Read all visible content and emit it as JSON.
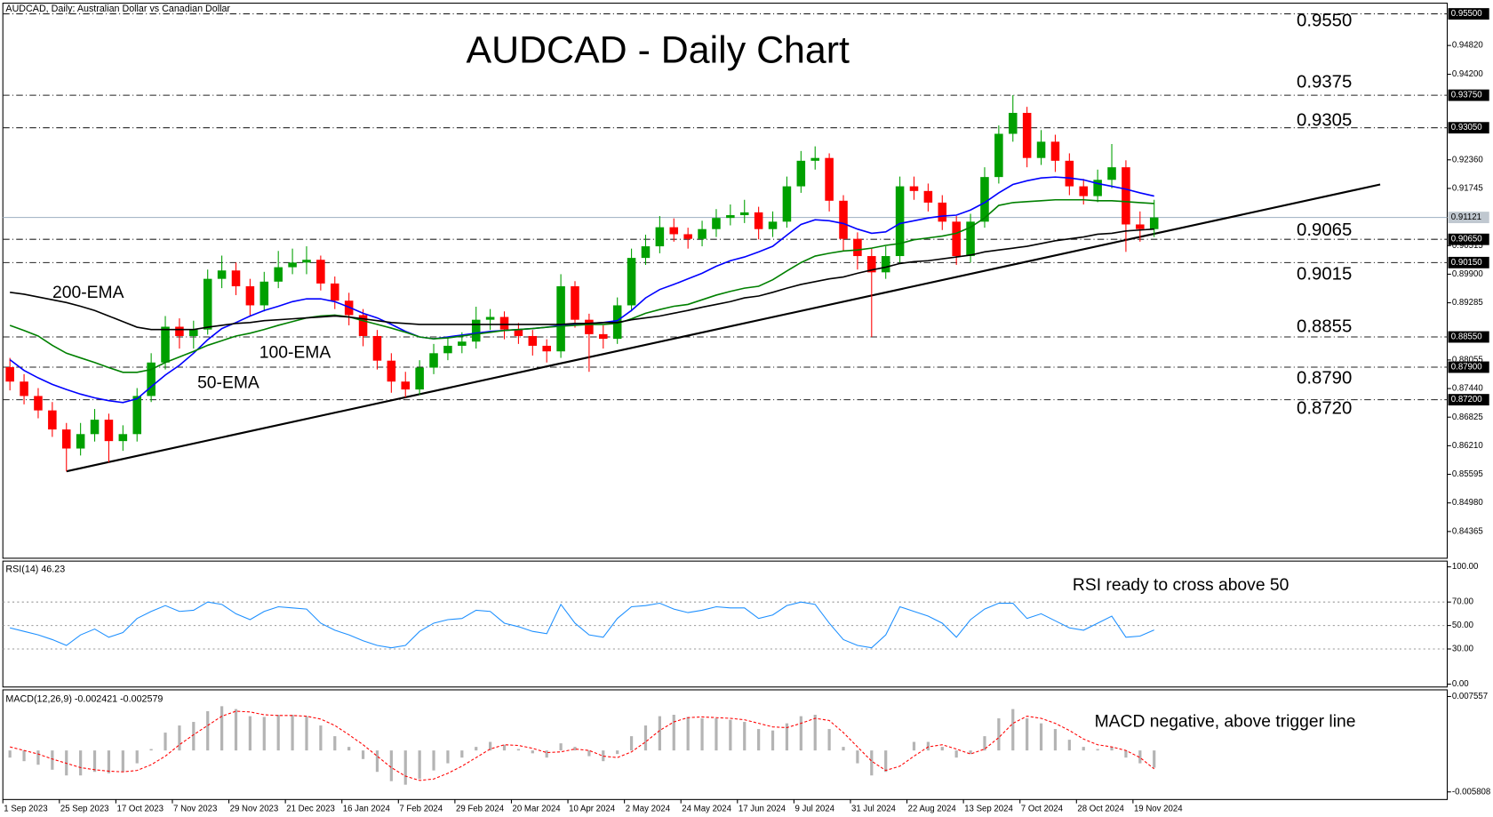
{
  "header": "AUDCAD, Daily:  Australian Dollar vs Canadian Dollar",
  "chart_data": [
    {
      "type": "candlestick",
      "title": "AUDCAD - Daily Chart",
      "categories": [
        "1 Sep 2023",
        null,
        null,
        null,
        "25 Sep 2023",
        null,
        null,
        null,
        "17 Oct 2023",
        null,
        null,
        null,
        "7 Nov 2023",
        null,
        null,
        null,
        "29 Nov 2023",
        null,
        null,
        null,
        "21 Dec 2023",
        null,
        null,
        null,
        "16 Jan 2024",
        null,
        null,
        null,
        "7 Feb 2024",
        null,
        null,
        null,
        "29 Feb 2024",
        null,
        null,
        null,
        "20 Mar 2024",
        null,
        null,
        null,
        "10 Apr 2024",
        null,
        null,
        null,
        "2 May 2024",
        null,
        null,
        null,
        "24 May 2024",
        null,
        null,
        null,
        "17 Jun 2024",
        null,
        null,
        null,
        "9 Jul 2024",
        null,
        null,
        null,
        "31 Jul 2024",
        null,
        null,
        null,
        "22 Aug 2024",
        null,
        null,
        null,
        "13 Sep 2024",
        null,
        null,
        null,
        "7 Oct 2024",
        null,
        null,
        null,
        "28 Oct 2024",
        null,
        null,
        null,
        "19 Nov 2024",
        null
      ],
      "open": [
        0.879,
        0.8759,
        0.8728,
        0.8697,
        0.8656,
        0.8615,
        0.8646,
        0.8677,
        0.8631,
        0.8646,
        0.8728,
        0.88,
        0.8877,
        0.8857,
        0.8871,
        0.898,
        0.8998,
        0.8964,
        0.8923,
        0.8974,
        0.9005,
        0.9015,
        0.9021,
        0.897,
        0.8933,
        0.8902,
        0.8857,
        0.8804,
        0.8759,
        0.8742,
        0.8789,
        0.882,
        0.8836,
        0.8845,
        0.8892,
        0.8898,
        0.8871,
        0.8857,
        0.8836,
        0.8824,
        0.8964,
        0.8892,
        0.8861,
        0.8851,
        0.8923,
        0.9025,
        0.905,
        0.9091,
        0.9076,
        0.9066,
        0.9087,
        0.9111,
        0.9117,
        0.9123,
        0.9087,
        0.9103,
        0.9179,
        0.9234,
        0.924,
        0.9148,
        0.9066,
        0.9029,
        0.8994,
        0.9029,
        0.9179,
        0.9169,
        0.9144,
        0.9103,
        0.9029,
        0.9103,
        0.9199,
        0.9292,
        0.9337,
        0.924,
        0.9275,
        0.9234,
        0.9179,
        0.9158,
        0.9193,
        0.922,
        0.9097,
        0.9087
      ],
      "high": [
        0.881,
        0.8775,
        0.8745,
        0.8715,
        0.867,
        0.867,
        0.87,
        0.869,
        0.8665,
        0.8745,
        0.882,
        0.89,
        0.8895,
        0.889,
        0.9,
        0.903,
        0.9015,
        0.898,
        0.8995,
        0.904,
        0.9045,
        0.905,
        0.903,
        0.8985,
        0.895,
        0.8915,
        0.887,
        0.882,
        0.878,
        0.8805,
        0.884,
        0.8855,
        0.8865,
        0.892,
        0.8915,
        0.891,
        0.8885,
        0.887,
        0.885,
        0.899,
        0.8975,
        0.8905,
        0.888,
        0.894,
        0.9045,
        0.9075,
        0.9115,
        0.911,
        0.909,
        0.9105,
        0.913,
        0.914,
        0.915,
        0.9135,
        0.9125,
        0.92,
        0.9255,
        0.9265,
        0.925,
        0.916,
        0.908,
        0.9045,
        0.905,
        0.92,
        0.92,
        0.9185,
        0.916,
        0.9115,
        0.912,
        0.922,
        0.931,
        0.9375,
        0.935,
        0.93,
        0.929,
        0.925,
        0.9195,
        0.9215,
        0.927,
        0.9235,
        0.9125,
        0.915
      ],
      "low": [
        0.874,
        0.871,
        0.868,
        0.864,
        0.8566,
        0.86,
        0.863,
        0.8585,
        0.861,
        0.863,
        0.8715,
        0.8785,
        0.883,
        0.883,
        0.886,
        0.896,
        0.8945,
        0.89,
        0.891,
        0.896,
        0.899,
        0.899,
        0.8955,
        0.8915,
        0.888,
        0.8835,
        0.8785,
        0.8735,
        0.8725,
        0.873,
        0.8775,
        0.8805,
        0.882,
        0.883,
        0.887,
        0.885,
        0.884,
        0.8815,
        0.88,
        0.881,
        0.8875,
        0.878,
        0.883,
        0.884,
        0.891,
        0.901,
        0.9035,
        0.906,
        0.9045,
        0.905,
        0.907,
        0.9095,
        0.91,
        0.9065,
        0.907,
        0.909,
        0.9165,
        0.9215,
        0.9125,
        0.904,
        0.9,
        0.8855,
        0.898,
        0.9015,
        0.915,
        0.9125,
        0.9085,
        0.901,
        0.9015,
        0.909,
        0.9185,
        0.9275,
        0.922,
        0.9225,
        0.921,
        0.916,
        0.914,
        0.9145,
        0.9175,
        0.9038,
        0.906,
        0.907
      ],
      "close": [
        0.8759,
        0.8728,
        0.8697,
        0.8656,
        0.8615,
        0.8646,
        0.8677,
        0.8631,
        0.8646,
        0.8728,
        0.88,
        0.8877,
        0.8857,
        0.8871,
        0.898,
        0.8998,
        0.8964,
        0.8923,
        0.8974,
        0.9005,
        0.9015,
        0.9021,
        0.897,
        0.8933,
        0.8902,
        0.8857,
        0.8804,
        0.8759,
        0.8742,
        0.8789,
        0.882,
        0.8836,
        0.8845,
        0.8892,
        0.8898,
        0.8871,
        0.8857,
        0.8836,
        0.8824,
        0.8964,
        0.8892,
        0.8861,
        0.8851,
        0.8923,
        0.9025,
        0.905,
        0.9091,
        0.9076,
        0.9066,
        0.9087,
        0.9111,
        0.9117,
        0.9123,
        0.9087,
        0.9103,
        0.9179,
        0.9234,
        0.924,
        0.9148,
        0.9066,
        0.9029,
        0.8994,
        0.9029,
        0.9179,
        0.9169,
        0.9144,
        0.9103,
        0.9029,
        0.9103,
        0.9199,
        0.9292,
        0.9337,
        0.924,
        0.9275,
        0.9234,
        0.9179,
        0.9158,
        0.9193,
        0.922,
        0.9097,
        0.9087,
        0.9112
      ],
      "up_color": "#00a000",
      "down_color": "#ff0000",
      "series": [
        {
          "name": "50-EMA",
          "color": "#0000ff",
          "values": [
            0.8806,
            0.8783,
            0.8767,
            0.8753,
            0.8742,
            0.8732,
            0.8724,
            0.8718,
            0.8714,
            0.8722,
            0.8748,
            0.8773,
            0.8794,
            0.882,
            0.8849,
            0.8873,
            0.8886,
            0.89,
            0.8912,
            0.8921,
            0.8931,
            0.8937,
            0.8937,
            0.8931,
            0.8919,
            0.8906,
            0.8896,
            0.8882,
            0.8867,
            0.8855,
            0.8851,
            0.8855,
            0.8859,
            0.8863,
            0.8867,
            0.8869,
            0.8871,
            0.8873,
            0.8876,
            0.888,
            0.8882,
            0.8884,
            0.8886,
            0.889,
            0.8912,
            0.8939,
            0.8957,
            0.8968,
            0.898,
            0.8992,
            0.9007,
            0.9019,
            0.9027,
            0.9038,
            0.905,
            0.9074,
            0.9097,
            0.9107,
            0.9105,
            0.9099,
            0.9087,
            0.9078,
            0.9081,
            0.9099,
            0.9105,
            0.9111,
            0.9115,
            0.9117,
            0.9128,
            0.9144,
            0.9165,
            0.9183,
            0.9191,
            0.9197,
            0.9199,
            0.9197,
            0.9193,
            0.9185,
            0.9179,
            0.9173,
            0.9165,
            0.9158
          ]
        },
        {
          "name": "100-EMA",
          "color": "#008000",
          "values": [
            0.888,
            0.8869,
            0.8857,
            0.8837,
            0.882,
            0.881,
            0.88,
            0.8789,
            0.8779,
            0.8779,
            0.8785,
            0.88,
            0.8812,
            0.8824,
            0.8837,
            0.8847,
            0.8857,
            0.8863,
            0.8871,
            0.888,
            0.8888,
            0.8896,
            0.89,
            0.8902,
            0.8898,
            0.889,
            0.8882,
            0.8874,
            0.8865,
            0.8855,
            0.8851,
            0.8853,
            0.8857,
            0.8861,
            0.8865,
            0.8869,
            0.8871,
            0.8873,
            0.8876,
            0.8878,
            0.888,
            0.8882,
            0.8882,
            0.8884,
            0.8894,
            0.8906,
            0.8914,
            0.8921,
            0.8925,
            0.8935,
            0.8945,
            0.8953,
            0.896,
            0.8964,
            0.8978,
            0.8997,
            0.9015,
            0.9029,
            0.9035,
            0.904,
            0.9042,
            0.9046,
            0.9052,
            0.9056,
            0.9064,
            0.9068,
            0.9072,
            0.9078,
            0.9091,
            0.9111,
            0.9138,
            0.9144,
            0.9146,
            0.9148,
            0.915,
            0.915,
            0.915,
            0.9148,
            0.9148,
            0.9146,
            0.9144,
            0.9142
          ]
        },
        {
          "name": "200-EMA",
          "color": "#000000",
          "values": [
            0.8951,
            0.8947,
            0.8941,
            0.8935,
            0.8929,
            0.8921,
            0.8912,
            0.89,
            0.8888,
            0.8876,
            0.8871,
            0.8871,
            0.8871,
            0.8871,
            0.8876,
            0.888,
            0.8884,
            0.8886,
            0.889,
            0.8892,
            0.8894,
            0.8896,
            0.8898,
            0.89,
            0.8898,
            0.8894,
            0.889,
            0.8886,
            0.8884,
            0.8882,
            0.8882,
            0.8882,
            0.8882,
            0.8882,
            0.8882,
            0.8882,
            0.8882,
            0.8882,
            0.8882,
            0.8882,
            0.8884,
            0.8884,
            0.8886,
            0.8886,
            0.8892,
            0.8896,
            0.89,
            0.8906,
            0.8912,
            0.8919,
            0.8925,
            0.8931,
            0.8939,
            0.8943,
            0.8951,
            0.896,
            0.8968,
            0.8974,
            0.898,
            0.8984,
            0.8992,
            0.8999,
            0.9005,
            0.9013,
            0.9017,
            0.9019,
            0.9023,
            0.9027,
            0.9031,
            0.9038,
            0.9042,
            0.9046,
            0.905,
            0.9056,
            0.9062,
            0.9066,
            0.907,
            0.9076,
            0.9078,
            0.9083,
            0.9085,
            0.9087
          ]
        }
      ],
      "ylim": [
        0.8379,
        0.9573
      ],
      "yticks": [
        {
          "value": 0.9482,
          "label": "0.94820"
        },
        {
          "value": 0.942,
          "label": "0.94200"
        },
        {
          "value": 0.9236,
          "label": "0.92360"
        },
        {
          "value": 0.91745,
          "label": "0.91745"
        },
        {
          "value": 0.90515,
          "label": "0.90515"
        },
        {
          "value": 0.899,
          "label": "0.89900"
        },
        {
          "value": 0.89285,
          "label": "0.89285"
        },
        {
          "value": 0.88055,
          "label": "0.88055"
        },
        {
          "value": 0.8744,
          "label": "0.87440"
        },
        {
          "value": 0.86825,
          "label": "0.86825"
        },
        {
          "value": 0.8621,
          "label": "0.86210"
        },
        {
          "value": 0.85595,
          "label": "0.85595"
        },
        {
          "value": 0.8498,
          "label": "0.84980"
        },
        {
          "value": 0.84365,
          "label": "0.84365"
        }
      ],
      "levels": [
        {
          "value": 0.955,
          "label": "0.9550",
          "axis_label": "0.95500"
        },
        {
          "value": 0.9375,
          "label": "0.9375",
          "axis_label": "0.93750"
        },
        {
          "value": 0.9305,
          "label": "0.9305",
          "axis_label": "0.93050"
        },
        {
          "value": 0.9065,
          "label": "0.9065",
          "axis_label": "0.90650"
        },
        {
          "value": 0.9015,
          "label": "0.9015",
          "axis_label": "0.90150"
        },
        {
          "value": 0.8855,
          "label": "0.8855",
          "axis_label": "0.88550"
        },
        {
          "value": 0.879,
          "label": "0.8790",
          "axis_label": "0.87900"
        },
        {
          "value": 0.872,
          "label": "0.8720",
          "axis_label": "0.87200"
        }
      ],
      "current_price": 0.91121,
      "trendline": {
        "x": [
          4,
          97
        ],
        "y": [
          0.8566,
          0.9183
        ]
      }
    },
    {
      "type": "line",
      "title": "RSI(14) 46.23",
      "annotation": "RSI ready to cross above 50",
      "color": "#1e90ff",
      "values": [
        48,
        45,
        42,
        38,
        33,
        42,
        47,
        40,
        44,
        56,
        62,
        67,
        62,
        63,
        70,
        68,
        60,
        55,
        62,
        66,
        65,
        64,
        52,
        46,
        42,
        37,
        33,
        31,
        33,
        45,
        52,
        55,
        56,
        63,
        62,
        52,
        49,
        45,
        43,
        68,
        52,
        42,
        40,
        56,
        66,
        67,
        69,
        64,
        61,
        63,
        66,
        65,
        65,
        56,
        59,
        67,
        70,
        68,
        52,
        38,
        33,
        31,
        42,
        66,
        62,
        58,
        52,
        40,
        55,
        64,
        69,
        69,
        56,
        60,
        54,
        48,
        46,
        52,
        58,
        40,
        41,
        46.23
      ],
      "ylim": [
        -2.4,
        104.9
      ],
      "yticks": [
        {
          "value": 0,
          "label": "0.00"
        },
        {
          "value": 30,
          "label": "30.00"
        },
        {
          "value": 50,
          "label": "50.00"
        },
        {
          "value": 70,
          "label": "70.00"
        },
        {
          "value": 100,
          "label": "100.00"
        }
      ]
    },
    {
      "type": "bar",
      "title": "MACD(12,26,9) -0.002421 -0.002579",
      "annotation": "MACD negative, above trigger line",
      "color": "#b4b4b4",
      "signal_color": "#ff0000",
      "values": [
        -0.001,
        -0.0015,
        -0.002,
        -0.0027,
        -0.0035,
        -0.0035,
        -0.003,
        -0.0032,
        -0.003,
        -0.0018,
        0.0002,
        0.0025,
        0.0035,
        0.004,
        0.0055,
        0.0062,
        0.0058,
        0.0048,
        0.0047,
        0.005,
        0.005,
        0.0048,
        0.0035,
        0.002,
        0.0005,
        -0.0012,
        -0.003,
        -0.0043,
        -0.0048,
        -0.004,
        -0.0028,
        -0.0018,
        -0.001,
        0.0005,
        0.0012,
        0.0008,
        0.0002,
        -0.0004,
        -0.001,
        0.001,
        0.0005,
        -0.0008,
        -0.0015,
        -0.0005,
        0.002,
        0.0035,
        0.0048,
        0.005,
        0.0047,
        0.0045,
        0.0045,
        0.0043,
        0.004,
        0.003,
        0.0028,
        0.0038,
        0.0048,
        0.005,
        0.003,
        0.0005,
        -0.0018,
        -0.0035,
        -0.003,
        0.0,
        0.0012,
        0.0012,
        0.0005,
        -0.001,
        -0.0005,
        0.002,
        0.0045,
        0.0058,
        0.0045,
        0.0038,
        0.003,
        0.0015,
        0.0005,
        0.0002,
        0.0005,
        -0.001,
        -0.0018,
        -0.002421
      ],
      "signal": [
        0.0005,
        0.0,
        -0.0005,
        -0.0012,
        -0.0018,
        -0.0024,
        -0.0027,
        -0.0029,
        -0.003,
        -0.0028,
        -0.002,
        -0.0008,
        0.0008,
        0.0022,
        0.0035,
        0.0048,
        0.0055,
        0.0054,
        0.005,
        0.0049,
        0.0049,
        0.0048,
        0.0044,
        0.0035,
        0.0022,
        0.0008,
        -0.0008,
        -0.0024,
        -0.0036,
        -0.0042,
        -0.004,
        -0.0032,
        -0.0022,
        -0.001,
        0.0002,
        0.0008,
        0.0007,
        0.0003,
        -0.0003,
        -0.0002,
        0.0002,
        0.0,
        -0.0008,
        -0.001,
        -0.0002,
        0.0012,
        0.0028,
        0.004,
        0.0046,
        0.0047,
        0.0046,
        0.0045,
        0.0043,
        0.0038,
        0.0033,
        0.0032,
        0.0038,
        0.0045,
        0.0042,
        0.0025,
        0.0005,
        -0.0015,
        -0.0028,
        -0.0022,
        -0.0008,
        0.0005,
        0.0008,
        0.0002,
        -0.0005,
        0.0002,
        0.0018,
        0.0038,
        0.0048,
        0.0045,
        0.0038,
        0.0028,
        0.0016,
        0.0008,
        0.0005,
        0.0,
        -0.001,
        -0.002579
      ],
      "ylim": [
        -0.006877,
        0.008493
      ],
      "yticks": [
        -0.005808,
        0.007557
      ]
    }
  ]
}
